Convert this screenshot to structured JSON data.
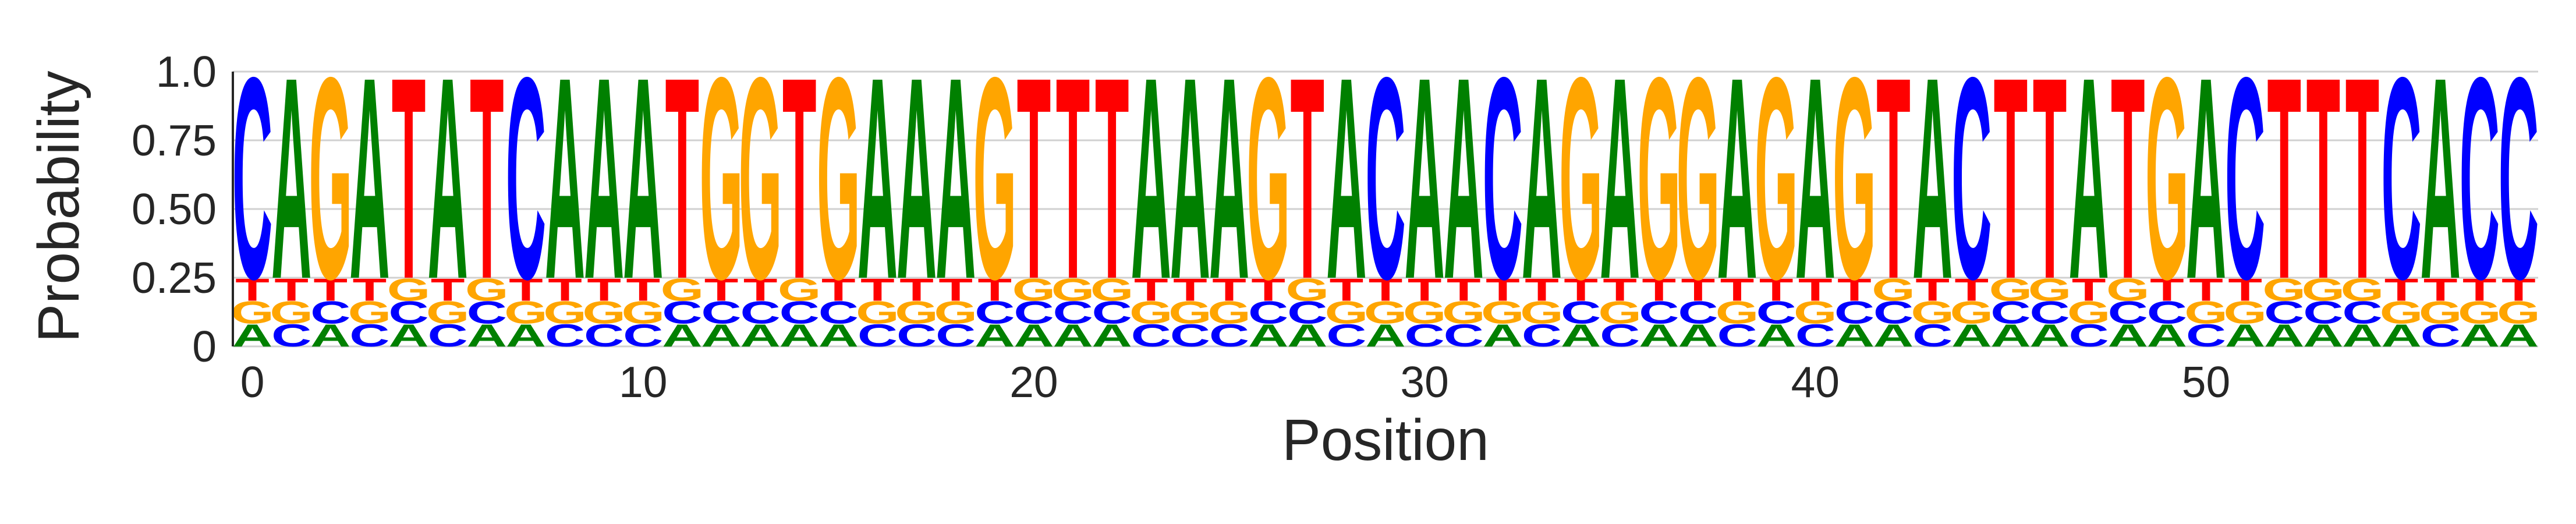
{
  "chart_data": {
    "type": "sequence-logo",
    "xlabel": "Position",
    "ylabel": "Probability",
    "ylim": [
      0,
      1
    ],
    "yticks": [
      "0",
      "0.25",
      "0.50",
      "0.75",
      "1.0"
    ],
    "ytick_values": [
      0,
      0.25,
      0.5,
      0.75,
      1.0
    ],
    "xticks": [
      "0",
      "10",
      "20",
      "30",
      "40",
      "50"
    ],
    "xtick_values": [
      0,
      10,
      20,
      30,
      40,
      50
    ],
    "grid": true,
    "dominant_probability": 0.75,
    "minor_probability": 0.0833,
    "minor_order": [
      "A",
      "C",
      "G",
      "T"
    ],
    "sequence": "CAGATATCAAATGGTGAAAGTTTAAAGTACAACAGAGGAGAGTACTTATGACTTTCACC",
    "colors": {
      "A": "#008000",
      "C": "#0000ff",
      "G": "#ffa500",
      "T": "#ff0000"
    }
  }
}
